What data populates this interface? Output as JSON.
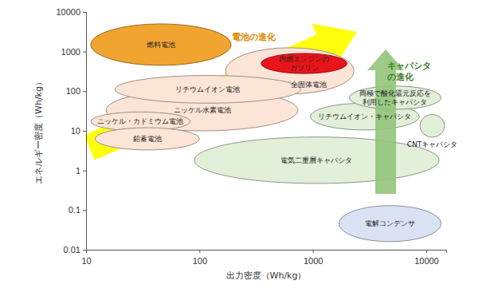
{
  "chart_data": {
    "type": "ellipse",
    "x_label": "出力密度（Wh/kg）",
    "y_label": "エネルギー密度（Wh/kg）",
    "log": true,
    "xlim": [
      10,
      15000
    ],
    "ylim": [
      0.01,
      10000
    ],
    "xticks": [
      10,
      100,
      1000,
      10000
    ],
    "yticks": [
      0.01,
      0.1,
      1,
      10,
      100,
      1000,
      10000
    ],
    "series": [
      {
        "name": "燃料電池",
        "color": "#f2a431",
        "x": [
          11,
          190
        ],
        "y": [
          450,
          5000
        ]
      },
      {
        "name": "全固体電池",
        "color": "#fce4d6",
        "x": [
          170,
          2300
        ],
        "y": [
          85,
          1250
        ]
      },
      {
        "name": "内燃エンジンの\nガソリン",
        "color": "#e8141a",
        "x": [
          350,
          2000
        ],
        "y": [
          280,
          900
        ]
      },
      {
        "name": "ニッケル水素電池",
        "color": "#fce4d6",
        "x": [
          15,
          740
        ],
        "y": [
          10,
          110
        ]
      },
      {
        "name": "リチウムイオン電池",
        "color": "#fce4d6",
        "x": [
          18,
          780
        ],
        "y": [
          50,
          250
        ]
      },
      {
        "name": "ニッケル・カドミウム電池",
        "color": "#fce4d6",
        "x": [
          11,
          83
        ],
        "y": [
          10,
          30
        ]
      },
      {
        "name": "鉛蓄電池",
        "color": "#fce4d6",
        "x": [
          12,
          100
        ],
        "y": [
          3.3,
          12
        ]
      },
      {
        "name": "電気二重層キャパシタ",
        "color": "#e2efd9",
        "x": [
          90,
          13000
        ],
        "y": [
          0.47,
          7
        ]
      },
      {
        "name": "リチウムイオン・キャパシタ",
        "color": "#e2efd9",
        "x": [
          950,
          8700
        ],
        "y": [
          10.5,
          50
        ]
      },
      {
        "name": "両極で酸化還元反応を\n利用したキャパシタ",
        "color": "#e2efd9",
        "x": [
          2100,
          13500
        ],
        "y": [
          35,
          135
        ]
      },
      {
        "name": "CNTキャパシタ",
        "color": "#e2efd9",
        "x": [
          8800,
          14500
        ],
        "y": [
          6.9,
          26
        ]
      },
      {
        "name": "電解コンデンサ",
        "color": "#dae3f3",
        "x": [
          1700,
          13500
        ],
        "y": [
          0.016,
          0.13
        ]
      }
    ],
    "annotations": [
      {
        "text": "電池の進化"
      },
      {
        "text": "キャパシタ\nの進化"
      }
    ]
  }
}
